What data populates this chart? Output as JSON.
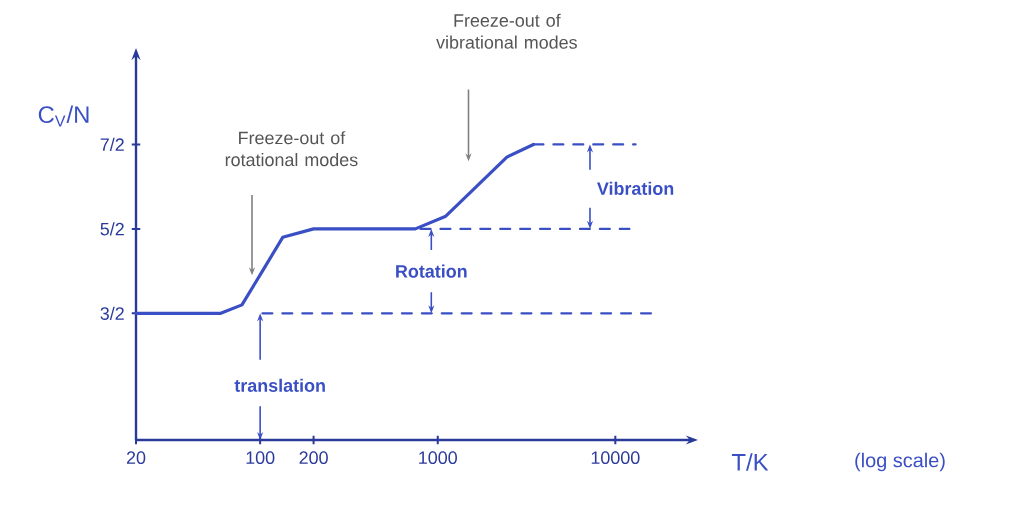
{
  "chart_data": {
    "type": "line",
    "xlabel": "T/K",
    "ylabel": "C$_{V}$/N",
    "log": "x",
    "xlim": [
      20,
      25000
    ],
    "xticks": [
      20,
      100,
      200,
      1000,
      10000
    ],
    "ylim": [
      0,
      4.5
    ],
    "yticks": [
      {
        "value": 1.5,
        "label": "3/2"
      },
      {
        "value": 2.5,
        "label": "5/2"
      },
      {
        "value": 3.5,
        "label": "7/2"
      }
    ],
    "grid": false,
    "series": [
      {
        "color": "#3a4fc4",
        "line_style": "solid",
        "x": [
          20,
          60,
          79,
          103,
          134,
          200,
          748,
          1110,
          1650,
          2450,
          3460
        ],
        "values": [
          1.5,
          1.5,
          1.6,
          2.0,
          2.4,
          2.5,
          2.5,
          2.65,
          3.0,
          3.35,
          3.5
        ]
      },
      {
        "color": "#3a4fc4",
        "line_style": "dashed",
        "x": [
          103,
          17000
        ],
        "values": [
          1.5,
          1.5
        ]
      },
      {
        "color": "#3a4fc4",
        "line_style": "dashed",
        "x": [
          800,
          12000
        ],
        "values": [
          2.5,
          2.5
        ]
      },
      {
        "color": "#3a4fc4",
        "line_style": "dashed",
        "x": [
          3460,
          13000
        ],
        "values": [
          3.5,
          3.5
        ]
      }
    ],
    "annotations": [
      "Freeze-out of rotational modes",
      "Freeze-out of vibrational modes",
      "Rotation",
      "Vibration",
      {
        "text": "translation",
        "x": 100,
        "y": 1.5
      },
      "(log scale)"
    ]
  }
}
